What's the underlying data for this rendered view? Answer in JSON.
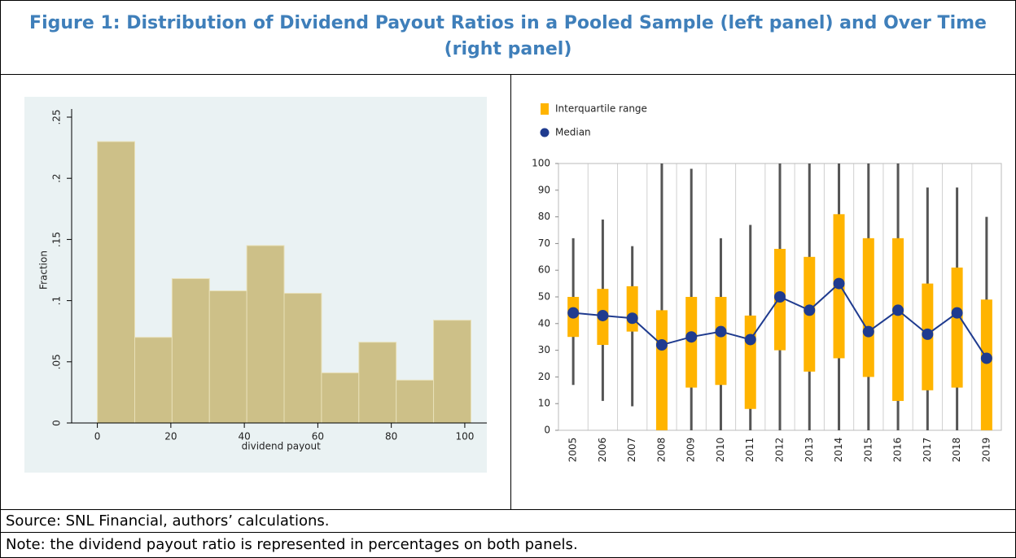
{
  "header": {
    "title": "Figure 1: Distribution of Dividend Payout Ratios in a Pooled Sample (left panel) and Over Time (right panel)"
  },
  "chart_data": [
    {
      "type": "histogram",
      "ylabel": "Fraction",
      "xlabel": "dividend payout",
      "bins": [
        0,
        10.17,
        20.33,
        30.5,
        40.67,
        50.83,
        61,
        71.17,
        81.33,
        91.5,
        101.67
      ],
      "values": [
        0.23,
        0.07,
        0.118,
        0.108,
        0.145,
        0.106,
        0.041,
        0.066,
        0.035,
        0.084
      ],
      "color": "#cdc088",
      "xlim": [
        -7,
        106
      ],
      "xticks": [
        0,
        20,
        40,
        60,
        80,
        100
      ],
      "ylim": [
        0,
        0.25
      ],
      "yticks": [
        0,
        {
          "value": 0.05,
          "label": ".05"
        },
        {
          "value": 0.1,
          "label": ".1"
        },
        {
          "value": 0.15,
          "label": ".15"
        },
        {
          "value": 0.2,
          "label": ".2"
        },
        {
          "value": 0.25,
          "label": ".25"
        }
      ]
    },
    {
      "type": "box",
      "categories": [
        "2005",
        "2006",
        "2007",
        "2008",
        "2009",
        "2010",
        "2011",
        "2012",
        "2013",
        "2014",
        "2015",
        "2016",
        "2017",
        "2018",
        "2019"
      ],
      "series": [
        {
          "name": "Interquartile range",
          "color": "#ffb400",
          "low": [
            35,
            32,
            37,
            0,
            16,
            17,
            8,
            30,
            22,
            27,
            20,
            11,
            15,
            16,
            0
          ],
          "high": [
            50,
            53,
            54,
            45,
            50,
            50,
            43,
            68,
            65,
            81,
            72,
            72,
            55,
            61,
            49
          ]
        },
        {
          "name": "Median",
          "color": "#1f3b8f",
          "values": [
            44,
            43,
            42,
            32,
            35,
            37,
            34,
            50,
            45,
            55,
            37,
            45,
            36,
            44,
            27
          ]
        }
      ],
      "whiskers": {
        "color": "#555555",
        "low": [
          17,
          11,
          9,
          0,
          0,
          0,
          0,
          0,
          0,
          0,
          0,
          0,
          0,
          0,
          0
        ],
        "high": [
          72,
          79,
          69,
          100,
          98,
          72,
          77,
          100,
          100,
          100,
          100,
          100,
          91,
          91,
          80
        ]
      },
      "ylim": [
        0,
        100
      ],
      "yticks": [
        0,
        10,
        20,
        30,
        40,
        50,
        60,
        70,
        80,
        90,
        100
      ]
    }
  ],
  "footer": {
    "source": "Source: SNL Financial, authors’ calculations.",
    "note": "Note: the dividend payout ratio is represented in percentages on both panels."
  }
}
